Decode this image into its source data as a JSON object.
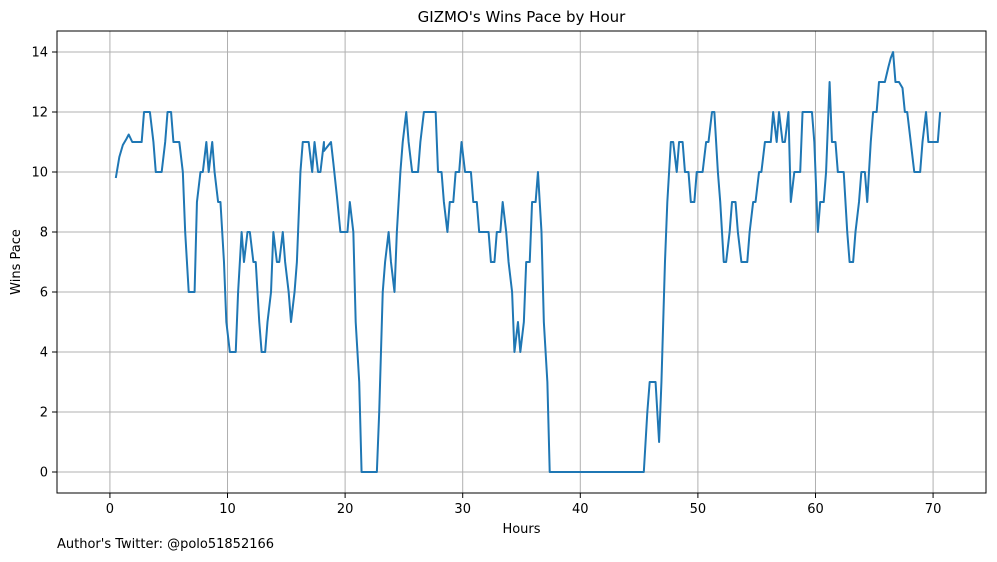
{
  "chart_data": {
    "type": "line",
    "title": "GIZMO's Wins Pace by Hour",
    "xlabel": "Hours",
    "ylabel": "Wins Pace",
    "xlim": [
      -4.5,
      74.5
    ],
    "ylim": [
      -0.7,
      14.7
    ],
    "xticks": [
      0,
      10,
      20,
      30,
      40,
      50,
      60,
      70
    ],
    "yticks": [
      0,
      2,
      4,
      6,
      8,
      10,
      12,
      14
    ],
    "grid": true,
    "series": [
      {
        "color": "#1f77b4",
        "points": [
          [
            0.5,
            9.8
          ],
          [
            0.8,
            10.5
          ],
          [
            1.1,
            10.9
          ],
          [
            1.4,
            11.1
          ],
          [
            1.6,
            11.25
          ],
          [
            1.9,
            11.0
          ],
          [
            2.2,
            11.0
          ],
          [
            2.5,
            11.0
          ],
          [
            2.7,
            11.0
          ],
          [
            2.9,
            12.0
          ],
          [
            3.2,
            12.0
          ],
          [
            3.4,
            12.0
          ],
          [
            3.7,
            11.0
          ],
          [
            3.9,
            10.0
          ],
          [
            4.2,
            10.0
          ],
          [
            4.4,
            10.0
          ],
          [
            4.7,
            11.0
          ],
          [
            4.9,
            12.0
          ],
          [
            5.2,
            12.0
          ],
          [
            5.4,
            11.0
          ],
          [
            5.7,
            11.0
          ],
          [
            5.9,
            11.0
          ],
          [
            6.2,
            10.0
          ],
          [
            6.4,
            8.0
          ],
          [
            6.7,
            6.0
          ],
          [
            6.9,
            6.0
          ],
          [
            7.2,
            6.0
          ],
          [
            7.4,
            9.0
          ],
          [
            7.7,
            10.0
          ],
          [
            7.9,
            10.0
          ],
          [
            8.2,
            11.0
          ],
          [
            8.4,
            10.0
          ],
          [
            8.7,
            11.0
          ],
          [
            8.9,
            10.0
          ],
          [
            9.2,
            9.0
          ],
          [
            9.4,
            9.0
          ],
          [
            9.7,
            7.0
          ],
          [
            9.9,
            5.0
          ],
          [
            10.2,
            4.0
          ],
          [
            10.4,
            4.0
          ],
          [
            10.7,
            4.0
          ],
          [
            10.9,
            6.0
          ],
          [
            11.2,
            8.0
          ],
          [
            11.4,
            7.0
          ],
          [
            11.7,
            8.0
          ],
          [
            11.9,
            8.0
          ],
          [
            12.2,
            7.0
          ],
          [
            12.4,
            7.0
          ],
          [
            12.7,
            5.0
          ],
          [
            12.9,
            4.0
          ],
          [
            13.2,
            4.0
          ],
          [
            13.4,
            5.0
          ],
          [
            13.7,
            6.0
          ],
          [
            13.9,
            8.0
          ],
          [
            14.2,
            7.0
          ],
          [
            14.4,
            7.0
          ],
          [
            14.7,
            8.0
          ],
          [
            14.9,
            7.0
          ],
          [
            15.2,
            6.0
          ],
          [
            15.4,
            5.0
          ],
          [
            15.7,
            6.0
          ],
          [
            15.9,
            7.0
          ],
          [
            16.2,
            10.0
          ],
          [
            16.4,
            11.0
          ],
          [
            16.7,
            11.0
          ],
          [
            16.9,
            11.0
          ],
          [
            17.2,
            10.0
          ],
          [
            17.4,
            11.0
          ],
          [
            17.7,
            10.0
          ],
          [
            17.9,
            10.0
          ],
          [
            18.2,
            11.0
          ],
          [
            18.2,
            10.7
          ],
          [
            18.6,
            10.9
          ],
          [
            18.8,
            11.0
          ],
          [
            19.0,
            10.3
          ],
          [
            19.3,
            9.2
          ],
          [
            19.6,
            8.0
          ],
          [
            19.8,
            8.0
          ],
          [
            20.0,
            8.0
          ],
          [
            20.2,
            8.0
          ],
          [
            20.4,
            9.0
          ],
          [
            20.7,
            8.0
          ],
          [
            20.9,
            5.0
          ],
          [
            21.2,
            3.0
          ],
          [
            21.4,
            0.0
          ],
          [
            21.7,
            0.0
          ],
          [
            21.9,
            0.0
          ],
          [
            22.2,
            0.0
          ],
          [
            22.4,
            0.0
          ],
          [
            22.7,
            0.0
          ],
          [
            22.9,
            2.0
          ],
          [
            23.2,
            6.0
          ],
          [
            23.4,
            7.0
          ],
          [
            23.7,
            8.0
          ],
          [
            23.9,
            7.0
          ],
          [
            24.2,
            6.0
          ],
          [
            24.4,
            8.0
          ],
          [
            24.7,
            10.0
          ],
          [
            24.9,
            11.0
          ],
          [
            25.2,
            12.0
          ],
          [
            25.4,
            11.0
          ],
          [
            25.7,
            10.0
          ],
          [
            25.9,
            10.0
          ],
          [
            26.2,
            10.0
          ],
          [
            26.4,
            11.0
          ],
          [
            26.7,
            12.0
          ],
          [
            26.9,
            12.0
          ],
          [
            27.2,
            12.0
          ],
          [
            27.4,
            12.0
          ],
          [
            27.7,
            12.0
          ],
          [
            27.9,
            10.0
          ],
          [
            28.2,
            10.0
          ],
          [
            28.4,
            9.0
          ],
          [
            28.7,
            8.0
          ],
          [
            28.9,
            9.0
          ],
          [
            29.2,
            9.0
          ],
          [
            29.4,
            10.0
          ],
          [
            29.7,
            10.0
          ],
          [
            29.9,
            11.0
          ],
          [
            30.2,
            10.0
          ],
          [
            30.4,
            10.0
          ],
          [
            30.7,
            10.0
          ],
          [
            30.9,
            9.0
          ],
          [
            31.2,
            9.0
          ],
          [
            31.4,
            8.0
          ],
          [
            31.7,
            8.0
          ],
          [
            31.9,
            8.0
          ],
          [
            32.2,
            8.0
          ],
          [
            32.4,
            7.0
          ],
          [
            32.7,
            7.0
          ],
          [
            32.9,
            8.0
          ],
          [
            33.2,
            8.0
          ],
          [
            33.4,
            9.0
          ],
          [
            33.7,
            8.0
          ],
          [
            33.9,
            7.0
          ],
          [
            34.2,
            6.0
          ],
          [
            34.4,
            4.0
          ],
          [
            34.7,
            5.0
          ],
          [
            34.9,
            4.0
          ],
          [
            35.2,
            5.0
          ],
          [
            35.4,
            7.0
          ],
          [
            35.7,
            7.0
          ],
          [
            35.9,
            9.0
          ],
          [
            36.2,
            9.0
          ],
          [
            36.4,
            10.0
          ],
          [
            36.7,
            8.0
          ],
          [
            36.9,
            5.0
          ],
          [
            37.2,
            3.0
          ],
          [
            37.4,
            0.0
          ],
          [
            38.0,
            0.0
          ],
          [
            40.0,
            0.0
          ],
          [
            42.0,
            0.0
          ],
          [
            44.0,
            0.0
          ],
          [
            45.4,
            0.0
          ],
          [
            45.7,
            2.0
          ],
          [
            45.9,
            3.0
          ],
          [
            46.2,
            3.0
          ],
          [
            46.4,
            3.0
          ],
          [
            46.7,
            1.0
          ],
          [
            46.9,
            3.0
          ],
          [
            47.2,
            7.0
          ],
          [
            47.4,
            9.0
          ],
          [
            47.7,
            11.0
          ],
          [
            47.9,
            11.0
          ],
          [
            48.2,
            10.0
          ],
          [
            48.4,
            11.0
          ],
          [
            48.7,
            11.0
          ],
          [
            48.9,
            10.0
          ],
          [
            49.2,
            10.0
          ],
          [
            49.4,
            9.0
          ],
          [
            49.7,
            9.0
          ],
          [
            49.9,
            10.0
          ],
          [
            50.2,
            10.0
          ],
          [
            50.4,
            10.0
          ],
          [
            50.7,
            11.0
          ],
          [
            50.9,
            11.0
          ],
          [
            51.2,
            12.0
          ],
          [
            51.4,
            12.0
          ],
          [
            51.7,
            10.0
          ],
          [
            51.9,
            9.0
          ],
          [
            52.2,
            7.0
          ],
          [
            52.4,
            7.0
          ],
          [
            52.7,
            8.0
          ],
          [
            52.9,
            9.0
          ],
          [
            53.2,
            9.0
          ],
          [
            53.4,
            8.0
          ],
          [
            53.7,
            7.0
          ],
          [
            53.9,
            7.0
          ],
          [
            54.2,
            7.0
          ],
          [
            54.4,
            8.0
          ],
          [
            54.7,
            9.0
          ],
          [
            54.9,
            9.0
          ],
          [
            55.2,
            10.0
          ],
          [
            55.4,
            10.0
          ],
          [
            55.7,
            11.0
          ],
          [
            55.9,
            11.0
          ],
          [
            56.2,
            11.0
          ],
          [
            56.4,
            12.0
          ],
          [
            56.7,
            11.0
          ],
          [
            56.9,
            12.0
          ],
          [
            57.2,
            11.0
          ],
          [
            57.4,
            11.0
          ],
          [
            57.7,
            12.0
          ],
          [
            57.9,
            9.0
          ],
          [
            58.2,
            10.0
          ],
          [
            58.4,
            10.0
          ],
          [
            58.7,
            10.0
          ],
          [
            58.9,
            12.0
          ],
          [
            59.2,
            12.0
          ],
          [
            59.4,
            12.0
          ],
          [
            59.7,
            12.0
          ],
          [
            59.9,
            11.0
          ],
          [
            60.2,
            8.0
          ],
          [
            60.4,
            9.0
          ],
          [
            60.7,
            9.0
          ],
          [
            60.9,
            10.0
          ],
          [
            61.2,
            13.0
          ],
          [
            61.4,
            11.0
          ],
          [
            61.7,
            11.0
          ],
          [
            61.9,
            10.0
          ],
          [
            62.2,
            10.0
          ],
          [
            62.4,
            10.0
          ],
          [
            62.7,
            8.0
          ],
          [
            62.9,
            7.0
          ],
          [
            63.2,
            7.0
          ],
          [
            63.4,
            8.0
          ],
          [
            63.7,
            9.0
          ],
          [
            63.9,
            10.0
          ],
          [
            64.2,
            10.0
          ],
          [
            64.4,
            9.0
          ],
          [
            64.7,
            11.0
          ],
          [
            64.9,
            12.0
          ],
          [
            65.2,
            12.0
          ],
          [
            65.4,
            13.0
          ],
          [
            65.7,
            13.0
          ],
          [
            65.9,
            13.0
          ],
          [
            66.2,
            13.5
          ],
          [
            66.4,
            13.8
          ],
          [
            66.6,
            14.0
          ],
          [
            66.8,
            13.0
          ],
          [
            67.1,
            13.0
          ],
          [
            67.4,
            12.8
          ],
          [
            67.6,
            12.0
          ],
          [
            67.8,
            12.0
          ],
          [
            68.1,
            11.0
          ],
          [
            68.4,
            10.0
          ],
          [
            68.6,
            10.0
          ],
          [
            68.9,
            10.0
          ],
          [
            69.1,
            11.0
          ],
          [
            69.4,
            12.0
          ],
          [
            69.6,
            11.0
          ],
          [
            69.9,
            11.0
          ],
          [
            70.1,
            11.0
          ],
          [
            70.4,
            11.0
          ],
          [
            70.6,
            12.0
          ]
        ]
      }
    ]
  },
  "footnote": "Author's Twitter: @polo51852166"
}
